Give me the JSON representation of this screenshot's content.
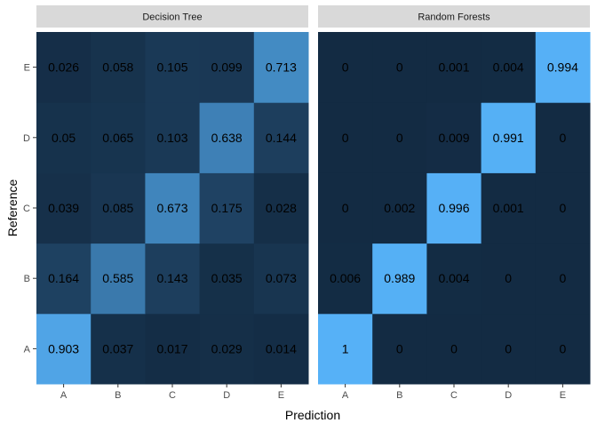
{
  "chart_data": {
    "type": "heatmap",
    "xlabel": "Prediction",
    "ylabel": "Reference",
    "x_categories": [
      "A",
      "B",
      "C",
      "D",
      "E"
    ],
    "y_categories": [
      "A",
      "B",
      "C",
      "D",
      "E"
    ],
    "y_order": "A at bottom, E at top",
    "color_scale": {
      "low": "#132b43",
      "high": "#56b1f7",
      "min": 0,
      "max": 1
    },
    "legend": "none",
    "panels": [
      {
        "title": "Decision Tree",
        "matrix": {
          "A": [
            "0.903",
            "0.037",
            "0.017",
            "0.029",
            "0.014"
          ],
          "B": [
            "0.164",
            "0.585",
            "0.143",
            "0.035",
            "0.073"
          ],
          "C": [
            "0.039",
            "0.085",
            "0.673",
            "0.175",
            "0.028"
          ],
          "D": [
            "0.05",
            "0.065",
            "0.103",
            "0.638",
            "0.144"
          ],
          "E": [
            "0.026",
            "0.058",
            "0.105",
            "0.099",
            "0.713"
          ]
        }
      },
      {
        "title": "Random Forests",
        "matrix": {
          "A": [
            "1",
            "0",
            "0",
            "0",
            "0"
          ],
          "B": [
            "0.006",
            "0.989",
            "0.004",
            "0",
            "0"
          ],
          "C": [
            "0",
            "0.002",
            "0.996",
            "0.001",
            "0"
          ],
          "D": [
            "0",
            "0",
            "0.009",
            "0.991",
            "0"
          ],
          "E": [
            "0",
            "0",
            "0.001",
            "0.004",
            "0.994"
          ]
        }
      }
    ]
  }
}
